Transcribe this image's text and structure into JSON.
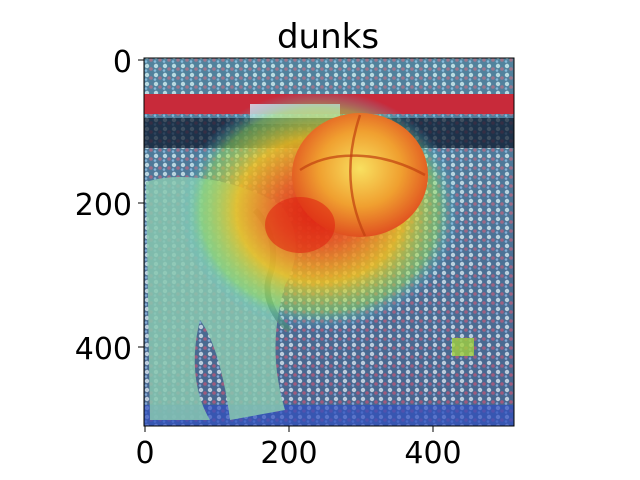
{
  "figure": {
    "title": "dunks",
    "image_description": "elephant-like creature dunking a glowing basketball in a crowded arena, saliency heatmap overlay",
    "x_ticks": [
      "0",
      "200",
      "400"
    ],
    "y_ticks": [
      "0",
      "200",
      "400"
    ],
    "x_range": [
      0,
      512
    ],
    "y_range": [
      0,
      512
    ]
  },
  "colors": {
    "heat_hot": "#e02010",
    "heat_warm": "#f0c020",
    "heat_cool": "#40c0ff",
    "crowd": "#5a6a8a",
    "banner_red": "#c82a3a",
    "creature": "#88c8b0"
  }
}
